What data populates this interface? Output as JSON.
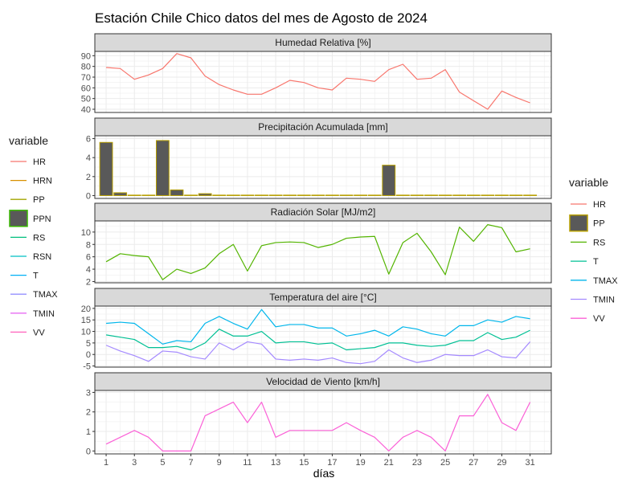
{
  "chart_data": {
    "type": "line",
    "title": "Estación Chile Chico datos del mes de Agosto de 2024",
    "xlabel": "días",
    "x": [
      1,
      2,
      3,
      4,
      5,
      6,
      7,
      8,
      9,
      10,
      11,
      12,
      13,
      14,
      15,
      16,
      17,
      18,
      19,
      20,
      21,
      22,
      23,
      24,
      25,
      26,
      27,
      28,
      29,
      30,
      31
    ],
    "x_ticks": [
      "1",
      "3",
      "5",
      "7",
      "9",
      "11",
      "13",
      "15",
      "17",
      "19",
      "21",
      "23",
      "25",
      "27",
      "29",
      "31"
    ],
    "xlim": [
      0.2,
      32.5
    ],
    "panels": [
      {
        "strip": "Humedad Relativa [%]",
        "ylim": [
          37,
          94
        ],
        "yticks": [
          40,
          50,
          60,
          70,
          80,
          90
        ],
        "series": [
          {
            "name": "HR",
            "type": "line",
            "color": "#F8766D",
            "values": [
              79,
              78,
              68,
              72,
              78,
              92,
              88,
              71,
              63,
              58,
              54,
              54,
              60,
              67,
              65,
              60,
              58,
              69,
              68,
              66,
              77,
              82,
              68,
              69,
              77,
              56,
              48,
              40,
              57,
              51,
              46
            ]
          }
        ]
      },
      {
        "strip": "Precipitación Acumulada [mm]",
        "ylim": [
          -0.3,
          6.3
        ],
        "yticks": [
          0,
          2,
          4,
          6
        ],
        "series": [
          {
            "name": "PP",
            "type": "bar",
            "color": "#B79F00",
            "fill": "#595959",
            "values": [
              5.6,
              0.3,
              0,
              0,
              5.8,
              0.6,
              0,
              0.2,
              0,
              0,
              0,
              0,
              0,
              0,
              0,
              0,
              0,
              0,
              0,
              0,
              3.2,
              0,
              0,
              0,
              0,
              0,
              0,
              0,
              0,
              0,
              0
            ]
          }
        ]
      },
      {
        "strip": "Radiación Solar [MJ/m2]",
        "ylim": [
          1.8,
          11.8
        ],
        "yticks": [
          2,
          4,
          6,
          8,
          10
        ],
        "series": [
          {
            "name": "RS",
            "type": "line",
            "color": "#53B400",
            "values": [
              5.2,
              6.5,
              6.2,
              6.0,
              2.3,
              4.0,
              3.3,
              4.2,
              6.5,
              8.0,
              3.7,
              7.8,
              8.3,
              8.4,
              8.3,
              7.5,
              8.0,
              9.0,
              9.2,
              9.3,
              3.2,
              8.3,
              9.8,
              6.8,
              3.1,
              10.8,
              8.5,
              11.2,
              10.7,
              6.8,
              7.3
            ]
          }
        ]
      },
      {
        "strip": "Temperatura del aire [°C]",
        "ylim": [
          -5.5,
          21
        ],
        "yticks": [
          -5,
          0,
          5,
          10,
          15,
          20
        ],
        "series": [
          {
            "name": "T",
            "type": "line",
            "color": "#00C094",
            "values": [
              8.5,
              7.5,
              6.5,
              3,
              3,
              3.5,
              2,
              5,
              11,
              8,
              8,
              10,
              5,
              5.5,
              5.5,
              4.5,
              5,
              2,
              2.5,
              3,
              5,
              5,
              4,
              3.5,
              4,
              6,
              6,
              9.5,
              6.5,
              7.5,
              10.5
            ]
          },
          {
            "name": "TMAX",
            "type": "line",
            "color": "#00B6EB",
            "values": [
              13.5,
              14,
              13.5,
              9,
              4.5,
              6,
              5.5,
              13.5,
              16.5,
              13.5,
              11,
              19.5,
              12,
              13,
              13,
              11.5,
              11.5,
              8,
              9,
              10.5,
              8,
              12,
              11,
              9,
              8,
              12.5,
              12.5,
              15,
              14,
              16.5,
              15.5
            ]
          },
          {
            "name": "TMIN",
            "type": "line",
            "color": "#A58AFF",
            "values": [
              4,
              1.5,
              -0.5,
              -3,
              1.5,
              1,
              -1,
              -2,
              5,
              2,
              5.5,
              4.5,
              -2,
              -2.5,
              -2,
              -2.5,
              -1.5,
              -3.5,
              -4,
              -3,
              2,
              -1.5,
              -3.5,
              -2.5,
              0,
              -0.5,
              -0.5,
              2,
              -1,
              -1.5,
              5.5
            ]
          }
        ]
      },
      {
        "strip": "Velocidad de Viento [km/h]",
        "ylim": [
          -0.15,
          3.1
        ],
        "yticks": [
          0,
          1,
          2,
          3
        ],
        "series": [
          {
            "name": "VV",
            "type": "line",
            "color": "#FB61D7",
            "values": [
              0.35,
              0.7,
              1.05,
              0.7,
              0,
              0,
              0,
              1.8,
              2.15,
              2.5,
              1.45,
              2.5,
              0.7,
              1.05,
              1.05,
              1.05,
              1.05,
              1.45,
              1.05,
              0.7,
              0,
              0.7,
              1.05,
              0.7,
              0,
              1.8,
              1.8,
              2.9,
              1.45,
              1.05,
              2.5
            ]
          }
        ]
      }
    ],
    "legends": [
      {
        "title": "variable",
        "placement": "left",
        "items": [
          {
            "label": "HR",
            "color": "#F8766D",
            "key": "line"
          },
          {
            "label": "HRN",
            "color": "#D89000",
            "key": "line"
          },
          {
            "label": "PP",
            "color": "#A3A500",
            "key": "line"
          },
          {
            "label": "PPN",
            "color": "#39B600",
            "key": "box",
            "fill": "#595959"
          },
          {
            "label": "RS",
            "color": "#00BF7D",
            "key": "line"
          },
          {
            "label": "RSN",
            "color": "#00BFC4",
            "key": "line"
          },
          {
            "label": "T",
            "color": "#00B0F6",
            "key": "line"
          },
          {
            "label": "TMAX",
            "color": "#9590FF",
            "key": "line"
          },
          {
            "label": "TMIN",
            "color": "#E76BF3",
            "key": "line"
          },
          {
            "label": "VV",
            "color": "#FF62BC",
            "key": "line"
          }
        ]
      },
      {
        "title": "variable",
        "placement": "right",
        "items": [
          {
            "label": "HR",
            "color": "#F8766D",
            "key": "line"
          },
          {
            "label": "PP",
            "color": "#B79F00",
            "key": "box",
            "fill": "#595959"
          },
          {
            "label": "RS",
            "color": "#53B400",
            "key": "line"
          },
          {
            "label": "T",
            "color": "#00C094",
            "key": "line"
          },
          {
            "label": "TMAX",
            "color": "#00B6EB",
            "key": "line"
          },
          {
            "label": "TMIN",
            "color": "#A58AFF",
            "key": "line"
          },
          {
            "label": "VV",
            "color": "#FB61D7",
            "key": "line"
          }
        ]
      }
    ],
    "grid": true,
    "colors": {
      "strip_fill": "#D9D9D9",
      "panel_border": "#333333",
      "grid": "#EBEBEB"
    }
  }
}
